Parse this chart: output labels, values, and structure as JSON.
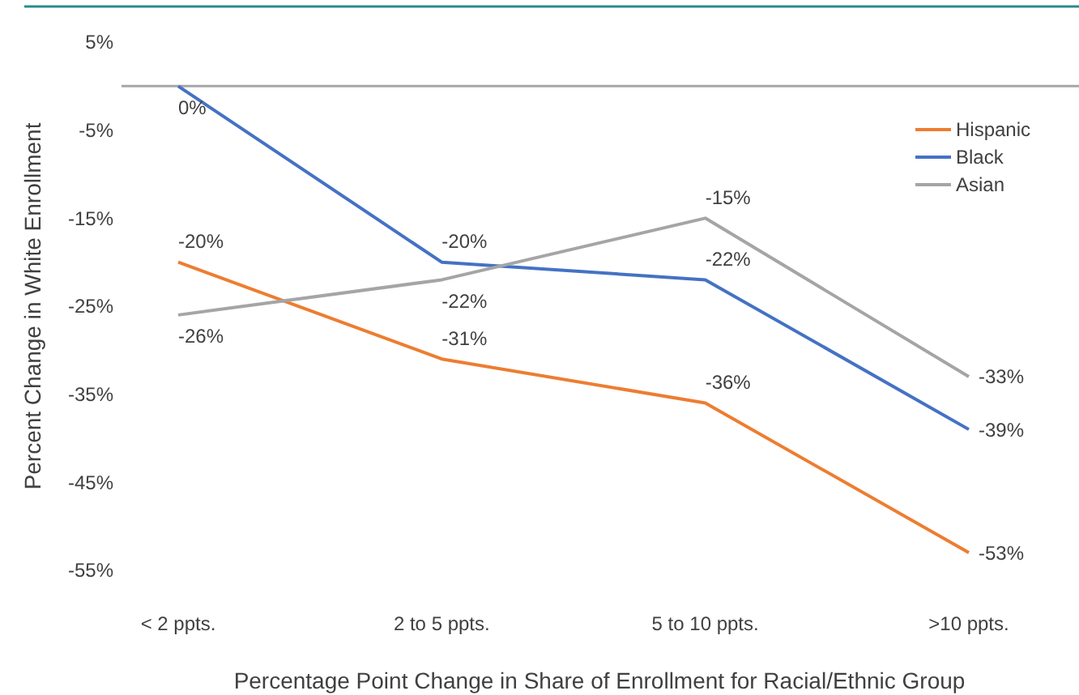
{
  "chart_data": {
    "type": "line",
    "xlabel": "Percentage Point Change in Share of Enrollment for Racial/Ethnic Group",
    "ylabel": "Percent Change in White Enrollment",
    "categories": [
      "< 2 ppts.",
      "2 to 5 ppts.",
      "5 to 10 ppts.",
      ">10 ppts."
    ],
    "series": [
      {
        "name": "Hispanic",
        "color": "#ed7d31",
        "values": [
          -20,
          -31,
          -36,
          -53
        ],
        "value_labels": [
          "-20%",
          "-31%",
          "-36%",
          "-53%"
        ]
      },
      {
        "name": "Black",
        "color": "#4472c4",
        "values": [
          0,
          -20,
          -22,
          -39
        ],
        "value_labels": [
          "0%",
          "-20%",
          "-22%",
          "-39%"
        ]
      },
      {
        "name": "Asian",
        "color": "#a5a5a5",
        "values": [
          -26,
          -22,
          -15,
          -33
        ],
        "value_labels": [
          "-26%",
          "-22%",
          "-15%",
          "-33%"
        ]
      }
    ],
    "ylim": [
      -55,
      5
    ],
    "yticks": [
      {
        "value": 5,
        "label": "5%"
      },
      {
        "value": -5,
        "label": "-5%"
      },
      {
        "value": -15,
        "label": "-15%"
      },
      {
        "value": -25,
        "label": "-25%"
      },
      {
        "value": -35,
        "label": "-35%"
      },
      {
        "value": -45,
        "label": "-45%"
      },
      {
        "value": -55,
        "label": "-55%"
      }
    ],
    "ref_lines": [
      {
        "axis": "y",
        "value": 0,
        "color": "#a6a6a6"
      }
    ],
    "legend": "top right",
    "grid": false,
    "marker": "none",
    "line_style": "solid"
  }
}
